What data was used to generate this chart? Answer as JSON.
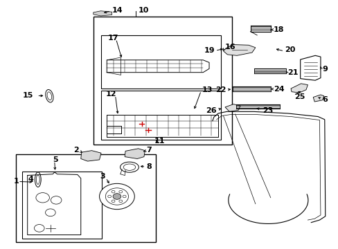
{
  "bg_color": "#ffffff",
  "line_color": "#000000",
  "red_color": "#cc0000",
  "fig_width": 4.89,
  "fig_height": 3.6,
  "dpi": 100
}
